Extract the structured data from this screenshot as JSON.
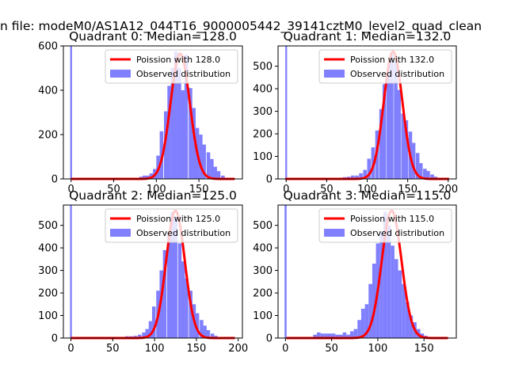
{
  "figure": {
    "suptitle": "n file: modeM0/AS1A12_044T16_9000005442_39141cztM0_level2_quad_clean"
  },
  "colors": {
    "poisson_line": "#ff0000",
    "observed_bar": "#8080ff",
    "axis": "#000000"
  },
  "chart_data": [
    {
      "type": "bar",
      "title": "Quadrant 0: Median=128.0",
      "xlabel": "",
      "ylabel": "",
      "xlim": [
        -9,
        201
      ],
      "ylim": [
        0,
        600
      ],
      "xticks": [
        0,
        50,
        100,
        150
      ],
      "yticks": [
        0,
        200,
        400,
        600
      ],
      "legend_position": "top-right",
      "series": [
        {
          "name": "Poission with 128.0",
          "kind": "line",
          "mean": 128.0,
          "peak": 565
        },
        {
          "name": "Observed distribution",
          "kind": "histogram",
          "bin_width": 4.2,
          "bins": [
            [
              0,
              600
            ],
            [
              75,
              5
            ],
            [
              80,
              10
            ],
            [
              84,
              15
            ],
            [
              88,
              15
            ],
            [
              92,
              25
            ],
            [
              96,
              45
            ],
            [
              100,
              105
            ],
            [
              104,
              215
            ],
            [
              109,
              305
            ],
            [
              113,
              420
            ],
            [
              117,
              500
            ],
            [
              121,
              575
            ],
            [
              125,
              500
            ],
            [
              129,
              400
            ],
            [
              133,
              560
            ],
            [
              138,
              410
            ],
            [
              142,
              320
            ],
            [
              146,
              230
            ],
            [
              150,
              200
            ],
            [
              154,
              155
            ],
            [
              159,
              120
            ],
            [
              163,
              90
            ],
            [
              167,
              55
            ],
            [
              171,
              35
            ],
            [
              176,
              15
            ],
            [
              180,
              5
            ]
          ]
        }
      ]
    },
    {
      "type": "bar",
      "title": "Quadrant 1: Median=132.0",
      "xlabel": "",
      "ylabel": "",
      "xlim": [
        -10,
        210
      ],
      "ylim": [
        0,
        590
      ],
      "xticks": [
        0,
        50,
        100,
        150,
        200
      ],
      "yticks": [
        0,
        100,
        200,
        300,
        400,
        500
      ],
      "legend_position": "top-right",
      "series": [
        {
          "name": "Poission with 132.0",
          "kind": "line",
          "mean": 132.0,
          "peak": 565
        },
        {
          "name": "Observed distribution",
          "kind": "histogram",
          "bin_width": 4.5,
          "bins": [
            [
              0,
              590
            ],
            [
              65,
              5
            ],
            [
              70,
              8
            ],
            [
              75,
              10
            ],
            [
              80,
              15
            ],
            [
              85,
              15
            ],
            [
              90,
              25
            ],
            [
              95,
              40
            ],
            [
              100,
              90
            ],
            [
              105,
              140
            ],
            [
              110,
              215
            ],
            [
              115,
              310
            ],
            [
              119,
              420
            ],
            [
              124,
              490
            ],
            [
              128,
              560
            ],
            [
              133,
              520
            ],
            [
              137,
              395
            ],
            [
              142,
              290
            ],
            [
              146,
              260
            ],
            [
              151,
              210
            ],
            [
              155,
              160
            ],
            [
              160,
              115
            ],
            [
              164,
              70
            ],
            [
              169,
              45
            ],
            [
              173,
              35
            ],
            [
              178,
              20
            ],
            [
              182,
              10
            ],
            [
              187,
              5
            ],
            [
              192,
              3
            ]
          ]
        }
      ]
    },
    {
      "type": "bar",
      "title": "Quadrant 2: Median=125.0",
      "xlabel": "",
      "ylabel": "",
      "xlim": [
        -9,
        205
      ],
      "ylim": [
        0,
        590
      ],
      "xticks": [
        0,
        50,
        100,
        150,
        200
      ],
      "yticks": [
        0,
        100,
        200,
        300,
        400,
        500
      ],
      "legend_position": "top-right",
      "series": [
        {
          "name": "Poission with 125.0",
          "kind": "line",
          "mean": 125.0,
          "peak": 565
        },
        {
          "name": "Observed distribution",
          "kind": "histogram",
          "bin_width": 4.3,
          "bins": [
            [
              0,
              590
            ],
            [
              60,
              5
            ],
            [
              65,
              8
            ],
            [
              70,
              8
            ],
            [
              75,
              10
            ],
            [
              80,
              15
            ],
            [
              85,
              25
            ],
            [
              89,
              40
            ],
            [
              93,
              75
            ],
            [
              97,
              140
            ],
            [
              102,
              210
            ],
            [
              106,
              300
            ],
            [
              110,
              390
            ],
            [
              115,
              470
            ],
            [
              119,
              560
            ],
            [
              123,
              540
            ],
            [
              128,
              420
            ],
            [
              132,
              340
            ],
            [
              136,
              265
            ],
            [
              141,
              210
            ],
            [
              145,
              150
            ],
            [
              149,
              110
            ],
            [
              154,
              80
            ],
            [
              158,
              55
            ],
            [
              162,
              35
            ],
            [
              167,
              20
            ],
            [
              171,
              10
            ],
            [
              175,
              5
            ]
          ]
        }
      ]
    },
    {
      "type": "bar",
      "title": "Quadrant 3: Median=115.0",
      "xlabel": "",
      "ylabel": "",
      "xlim": [
        -8,
        185
      ],
      "ylim": [
        0,
        590
      ],
      "xticks": [
        0,
        50,
        100,
        150
      ],
      "yticks": [
        0,
        100,
        200,
        300,
        400,
        500
      ],
      "legend_position": "top-right",
      "series": [
        {
          "name": "Poission with 115.0",
          "kind": "line",
          "mean": 115.0,
          "peak": 565
        },
        {
          "name": "Observed distribution",
          "kind": "histogram",
          "bin_width": 4.0,
          "bins": [
            [
              0,
              590
            ],
            [
              30,
              15
            ],
            [
              34,
              25
            ],
            [
              38,
              20
            ],
            [
              42,
              20
            ],
            [
              46,
              20
            ],
            [
              50,
              20
            ],
            [
              54,
              15
            ],
            [
              58,
              15
            ],
            [
              62,
              25
            ],
            [
              66,
              15
            ],
            [
              70,
              30
            ],
            [
              74,
              40
            ],
            [
              78,
              80
            ],
            [
              82,
              130
            ],
            [
              86,
              150
            ],
            [
              90,
              240
            ],
            [
              94,
              330
            ],
            [
              98,
              420
            ],
            [
              102,
              470
            ],
            [
              106,
              560
            ],
            [
              110,
              500
            ],
            [
              114,
              410
            ],
            [
              118,
              350
            ],
            [
              122,
              300
            ],
            [
              126,
              240
            ],
            [
              130,
              160
            ],
            [
              134,
              100
            ],
            [
              138,
              70
            ],
            [
              142,
              40
            ],
            [
              146,
              20
            ],
            [
              150,
              10
            ]
          ]
        }
      ]
    }
  ]
}
